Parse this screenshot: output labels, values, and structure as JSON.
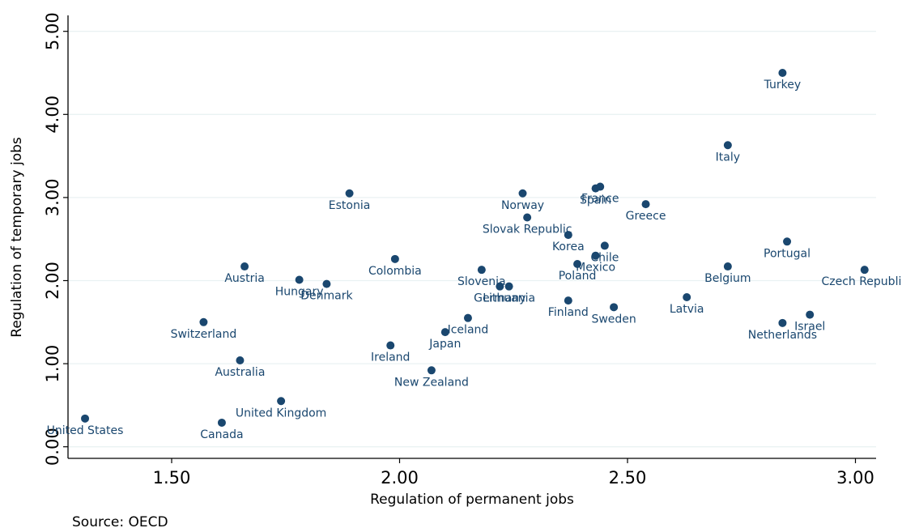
{
  "chart_data": {
    "type": "scatter",
    "title": "",
    "xlabel": "Regulation of permanent jobs",
    "ylabel": "Regulation of temporary jobs",
    "xlim": [
      1.3,
      3.05
    ],
    "ylim": [
      -0.2,
      5.2
    ],
    "xticks": [
      "1.50",
      "2.00",
      "2.50",
      "3.00"
    ],
    "yticks": [
      "0.00",
      "1.00",
      "2.00",
      "3.00",
      "4.00",
      "5.00"
    ],
    "grid": true,
    "marker_color": "#1a476f",
    "note": "Source: OECD",
    "points": [
      {
        "label": "Turkey",
        "x": 2.84,
        "y": 4.5
      },
      {
        "label": "Italy",
        "x": 2.72,
        "y": 3.63
      },
      {
        "label": "Estonia",
        "x": 1.89,
        "y": 3.05
      },
      {
        "label": "Norway",
        "x": 2.27,
        "y": 3.05
      },
      {
        "label": "France",
        "x": 2.44,
        "y": 3.13
      },
      {
        "label": "Spain",
        "x": 2.43,
        "y": 3.11
      },
      {
        "label": "Greece",
        "x": 2.54,
        "y": 2.92
      },
      {
        "label": "Slovak Republic",
        "x": 2.28,
        "y": 2.76
      },
      {
        "label": "Korea",
        "x": 2.37,
        "y": 2.55
      },
      {
        "label": "Chile",
        "x": 2.45,
        "y": 2.42
      },
      {
        "label": "Portugal",
        "x": 2.85,
        "y": 2.47
      },
      {
        "label": "Mexico",
        "x": 2.43,
        "y": 2.3
      },
      {
        "label": "Poland",
        "x": 2.39,
        "y": 2.2
      },
      {
        "label": "Austria",
        "x": 1.66,
        "y": 2.17
      },
      {
        "label": "Colombia",
        "x": 1.99,
        "y": 2.26
      },
      {
        "label": "Slovenia",
        "x": 2.18,
        "y": 2.13
      },
      {
        "label": "Belgium",
        "x": 2.72,
        "y": 2.17
      },
      {
        "label": "Czech Republic",
        "x": 3.02,
        "y": 2.13
      },
      {
        "label": "Hungary",
        "x": 1.78,
        "y": 2.01
      },
      {
        "label": "Denmark",
        "x": 1.84,
        "y": 1.96
      },
      {
        "label": "Germany",
        "x": 2.22,
        "y": 1.93
      },
      {
        "label": "Lithuania",
        "x": 2.24,
        "y": 1.93
      },
      {
        "label": "Finland",
        "x": 2.37,
        "y": 1.76
      },
      {
        "label": "Sweden",
        "x": 2.47,
        "y": 1.68
      },
      {
        "label": "Latvia",
        "x": 2.63,
        "y": 1.8
      },
      {
        "label": "Switzerland",
        "x": 1.57,
        "y": 1.5
      },
      {
        "label": "Iceland",
        "x": 2.15,
        "y": 1.55
      },
      {
        "label": "Japan",
        "x": 2.1,
        "y": 1.38
      },
      {
        "label": "Ireland",
        "x": 1.98,
        "y": 1.22
      },
      {
        "label": "Netherlands",
        "x": 2.84,
        "y": 1.49
      },
      {
        "label": "Israel",
        "x": 2.9,
        "y": 1.59
      },
      {
        "label": "Australia",
        "x": 1.65,
        "y": 1.04
      },
      {
        "label": "New Zealand",
        "x": 2.07,
        "y": 0.92
      },
      {
        "label": "United Kingdom",
        "x": 1.74,
        "y": 0.55
      },
      {
        "label": "United States",
        "x": 1.31,
        "y": 0.34
      },
      {
        "label": "Canada",
        "x": 1.61,
        "y": 0.29
      }
    ]
  }
}
